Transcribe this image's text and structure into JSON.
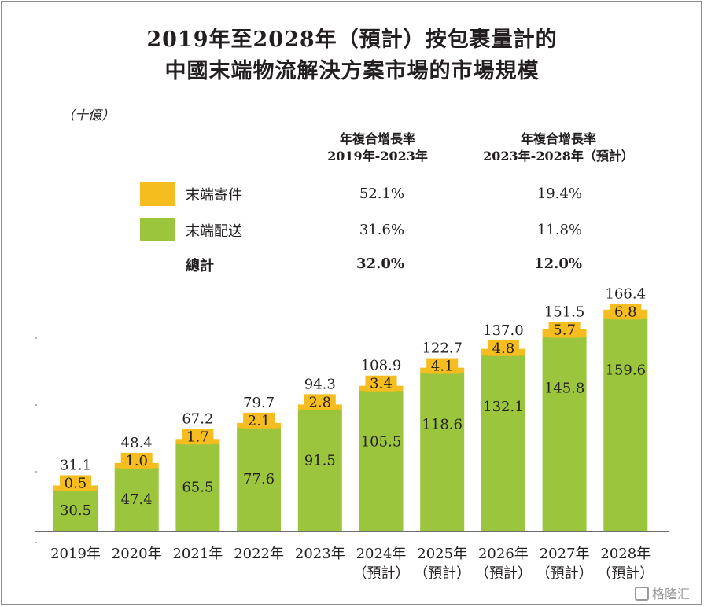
{
  "title_line1": "2019年至2028年（預計）按包裹量計的",
  "title_line2": "中國末端物流解決方案市場的市場規模",
  "unit": "（十億）",
  "cagr_headers": {
    "col1_line1": "年複合增長率",
    "col1_line2": "2019年-2023年",
    "col2_line1": "年複合增長率",
    "col2_line2": "2023年-2028年（預計）"
  },
  "legend": [
    {
      "label": "末端寄件",
      "color": "#f5bd1f",
      "cagr1": "52.1%",
      "cagr2": "19.4%"
    },
    {
      "label": "末端配送",
      "color": "#9bc53d",
      "cagr1": "31.6%",
      "cagr2": "11.8%"
    },
    {
      "label": "總計",
      "color": "",
      "cagr1": "32.0%",
      "cagr2": "12.0%"
    }
  ],
  "watermark": "格隆汇",
  "chart_data": {
    "type": "bar",
    "stacked": true,
    "title": "2019年至2028年（預計）按包裹量計的中國末端物流解決方案市場的市場規模",
    "ylabel": "（十億）",
    "categories": [
      [
        "2019年"
      ],
      [
        "2020年"
      ],
      [
        "2021年"
      ],
      [
        "2022年"
      ],
      [
        "2023年"
      ],
      [
        "2024年",
        "（預計）"
      ],
      [
        "2025年",
        "（預計）"
      ],
      [
        "2026年",
        "（預計）"
      ],
      [
        "2027年",
        "（預計）"
      ],
      [
        "2028年",
        "（預計）"
      ]
    ],
    "series": [
      {
        "name": "末端配送",
        "color": "#9bc53d",
        "values": [
          30.5,
          47.4,
          65.5,
          77.6,
          91.5,
          105.5,
          118.6,
          132.1,
          145.8,
          159.6
        ]
      },
      {
        "name": "末端寄件",
        "color": "#f5bd1f",
        "values": [
          0.5,
          1.0,
          1.7,
          2.1,
          2.8,
          3.4,
          4.1,
          4.8,
          5.7,
          6.8
        ]
      }
    ],
    "totals": [
      31.1,
      48.4,
      67.2,
      79.7,
      94.3,
      108.9,
      122.7,
      137.0,
      151.5,
      166.4
    ],
    "labels": {
      "delivery": [
        "30.5",
        "47.4",
        "65.5",
        "77.6",
        "91.5",
        "105.5",
        "118.6",
        "132.1",
        "145.8",
        "159.6"
      ],
      "sending": [
        "0.5",
        "1.0",
        "1.7",
        "2.1",
        "2.8",
        "3.4",
        "4.1",
        "4.8",
        "5.7",
        "6.8"
      ],
      "totals": [
        "31.1",
        "48.4",
        "67.2",
        "79.7",
        "94.3",
        "108.9",
        "122.7",
        "137.0",
        "151.5",
        "166.4"
      ]
    },
    "ylim": [
      0,
      180
    ]
  }
}
